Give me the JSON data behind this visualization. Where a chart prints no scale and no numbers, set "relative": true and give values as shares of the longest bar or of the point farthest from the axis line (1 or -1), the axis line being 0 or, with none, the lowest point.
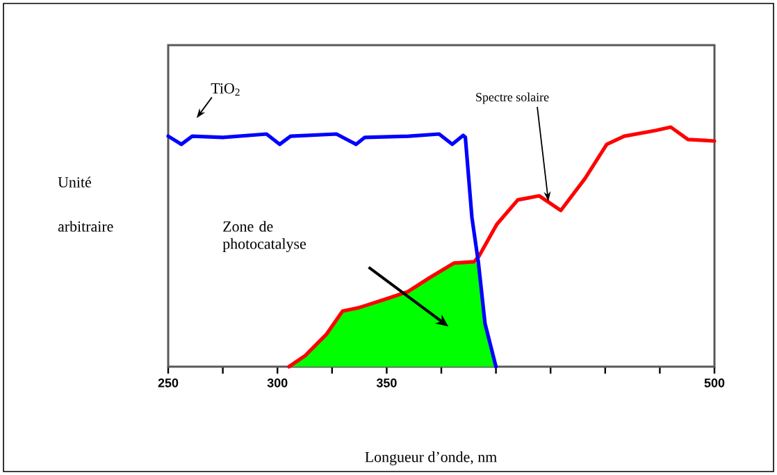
{
  "chart_data": {
    "type": "line",
    "relative": true,
    "xlabel": "Longueur d’onde, nm",
    "ylabel": "Unité arbitraire",
    "xlim": [
      250,
      500
    ],
    "xticks": [
      250,
      {
        "value": 275,
        "label": null
      },
      300,
      {
        "value": 325,
        "label": null
      },
      350,
      {
        "value": 375,
        "label": null
      },
      {
        "value": 400,
        "label": null
      },
      {
        "value": 425,
        "label": null
      },
      {
        "value": 450,
        "label": null
      },
      {
        "value": 475,
        "label": null
      },
      500
    ],
    "annotations": [
      "Zone de photocatalyse",
      {
        "text": "Spectre solaire",
        "x": 424,
        "y": 0.69
      },
      {
        "text": "TiO$_{2}$",
        "x": 263,
        "y": 0.962
      }
    ],
    "series": [
      {
        "type": "area",
        "color": "#00ff00",
        "x": [
          305.3,
          312.7,
          322.5,
          329.8,
          337.2,
          350.2,
          359.7,
          369.6,
          380.7,
          389,
          392,
          395,
          400
        ],
        "values": [
          0,
          0.046,
          0.136,
          0.232,
          0.246,
          0.284,
          0.313,
          0.371,
          0.432,
          0.438,
          0.432,
          0.18,
          0
        ]
      },
      {
        "color": "#ff0000",
        "x": [
          305.3,
          312.7,
          322.5,
          329.8,
          337.2,
          350.2,
          359.7,
          369.6,
          380.7,
          390,
          392.2,
          400.4,
          410,
          419.8,
          429.7,
          440.8,
          450.7,
          458.7,
          473.3,
          480,
          487.9,
          500
        ],
        "values": [
          0,
          0.046,
          0.136,
          0.232,
          0.246,
          0.284,
          0.313,
          0.371,
          0.432,
          0.438,
          0.461,
          0.594,
          0.696,
          0.713,
          0.652,
          0.786,
          0.928,
          0.962,
          0.986,
          1.0,
          0.948,
          0.942
        ]
      },
      {
        "color": "#0000ff",
        "x": [
          250,
          256,
          261,
          275,
          295,
          301,
          306,
          327,
          336,
          340,
          360,
          374,
          380,
          385,
          386,
          389,
          392,
          395,
          400
        ],
        "values": [
          0.962,
          0.928,
          0.962,
          0.957,
          0.971,
          0.928,
          0.962,
          0.971,
          0.928,
          0.957,
          0.962,
          0.971,
          0.928,
          0.965,
          0.957,
          0.623,
          0.432,
          0.18,
          0
        ]
      }
    ]
  }
}
